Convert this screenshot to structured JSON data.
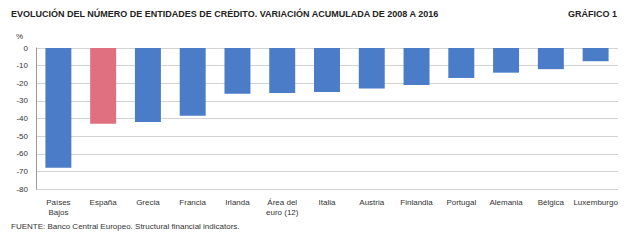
{
  "chart_data": {
    "type": "bar",
    "title": "EVOLUCIÓN DEL NÚMERO DE ENTIDADES DE CRÉDITO. VARIACIÓN ACUMULADA DE 2008 A 2016",
    "subtitle": "GRÁFICO 1",
    "ylabel": "%",
    "source": "FUENTE: Banco Central Europeo. Structural financial indicators.",
    "categories": [
      "Países\nBajos",
      "España",
      "Grecia",
      "Francia",
      "Irlanda",
      "Área del\neuro (12)",
      "Italia",
      "Austria",
      "Finlandia",
      "Portugal",
      "Alemania",
      "Bélgica",
      "Luxemburgo"
    ],
    "values": [
      -68,
      -43,
      -42,
      -38.5,
      -26,
      -25.5,
      -25,
      -23,
      -21,
      -17,
      -14,
      -12,
      -7.5
    ],
    "colors": [
      "#4a7cc8",
      "#e07080",
      "#4a7cc8",
      "#4a7cc8",
      "#4a7cc8",
      "#4a7cc8",
      "#4a7cc8",
      "#4a7cc8",
      "#4a7cc8",
      "#4a7cc8",
      "#4a7cc8",
      "#4a7cc8",
      "#4a7cc8"
    ],
    "ylim": [
      -80,
      0
    ],
    "yticks": [
      -80,
      -70,
      -60,
      -50,
      -40,
      -30,
      -20,
      -10,
      0
    ],
    "grid": true
  }
}
